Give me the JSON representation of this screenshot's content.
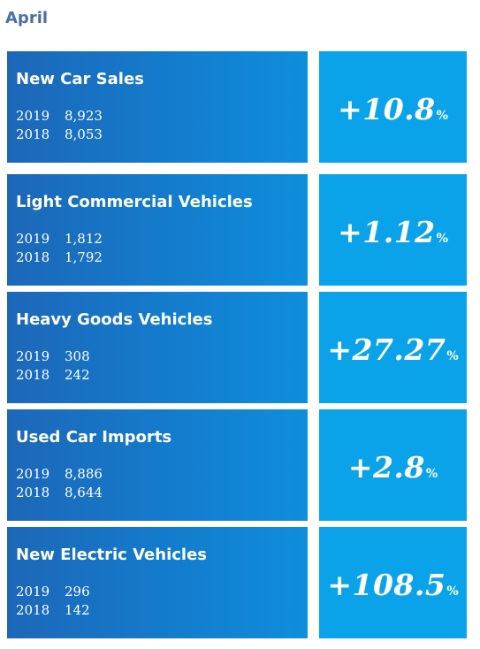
{
  "month": "April",
  "percent_symbol": "%",
  "stats": [
    {
      "title": "New Car Sales",
      "year1": "2019",
      "value1": "8,923",
      "year2": "2018",
      "value2": "8,053",
      "change": "+10.8"
    },
    {
      "title": "Light Commercial Vehicles",
      "year1": "2019",
      "value1": "1,812",
      "year2": "2018",
      "value2": "1,792",
      "change": "+1.12"
    },
    {
      "title": "Heavy Goods Vehicles",
      "year1": "2019",
      "value1": "308",
      "year2": "2018",
      "value2": "242",
      "change": "+27.27"
    },
    {
      "title": "Used Car Imports",
      "year1": "2019",
      "value1": "8,886",
      "year2": "2018",
      "value2": "8,644",
      "change": "+2.8"
    },
    {
      "title": "New Electric Vehicles",
      "year1": "2019",
      "value1": "296",
      "year2": "2018",
      "value2": "142",
      "change": "+108.5"
    }
  ]
}
